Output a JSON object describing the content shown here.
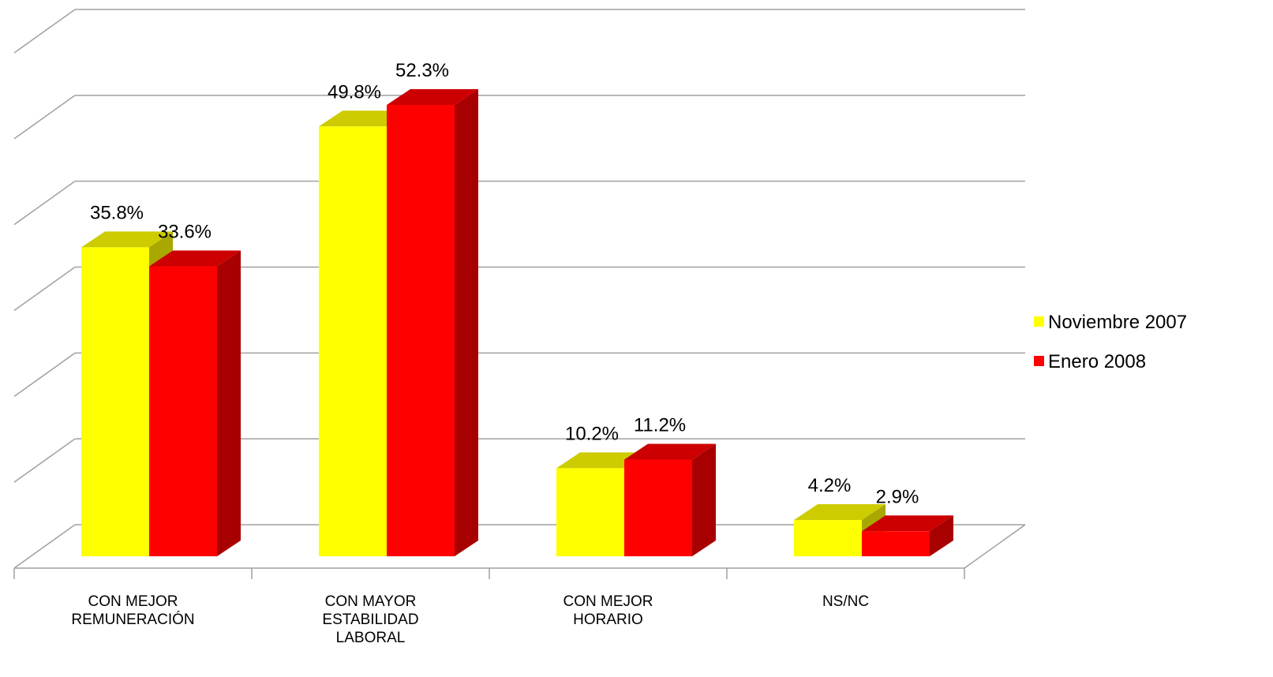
{
  "chart_data": {
    "type": "bar3d",
    "categories": [
      "CON MEJOR\nREMUNERACIÓN",
      "CON MAYOR\nESTABILIDAD\nLABORAL",
      "CON MEJOR\nHORARIO",
      "NS/NC"
    ],
    "series": [
      {
        "name": "Noviembre 2007",
        "color": "#ffff00",
        "values": [
          35.8,
          49.8,
          10.2,
          4.2
        ],
        "value_labels": [
          "35.8%",
          "49.8%",
          "10.2%",
          "4.2%"
        ]
      },
      {
        "name": "Enero 2008",
        "color": "#ff0000",
        "values": [
          33.6,
          52.3,
          11.2,
          2.9
        ],
        "value_labels": [
          "33.6%",
          "52.3%",
          "11.2%",
          "2.9%"
        ]
      }
    ],
    "ylim": [
      0,
      60
    ],
    "yticks": [
      0,
      10,
      20,
      30,
      40,
      50,
      60
    ],
    "grid": true,
    "legend": "right"
  }
}
